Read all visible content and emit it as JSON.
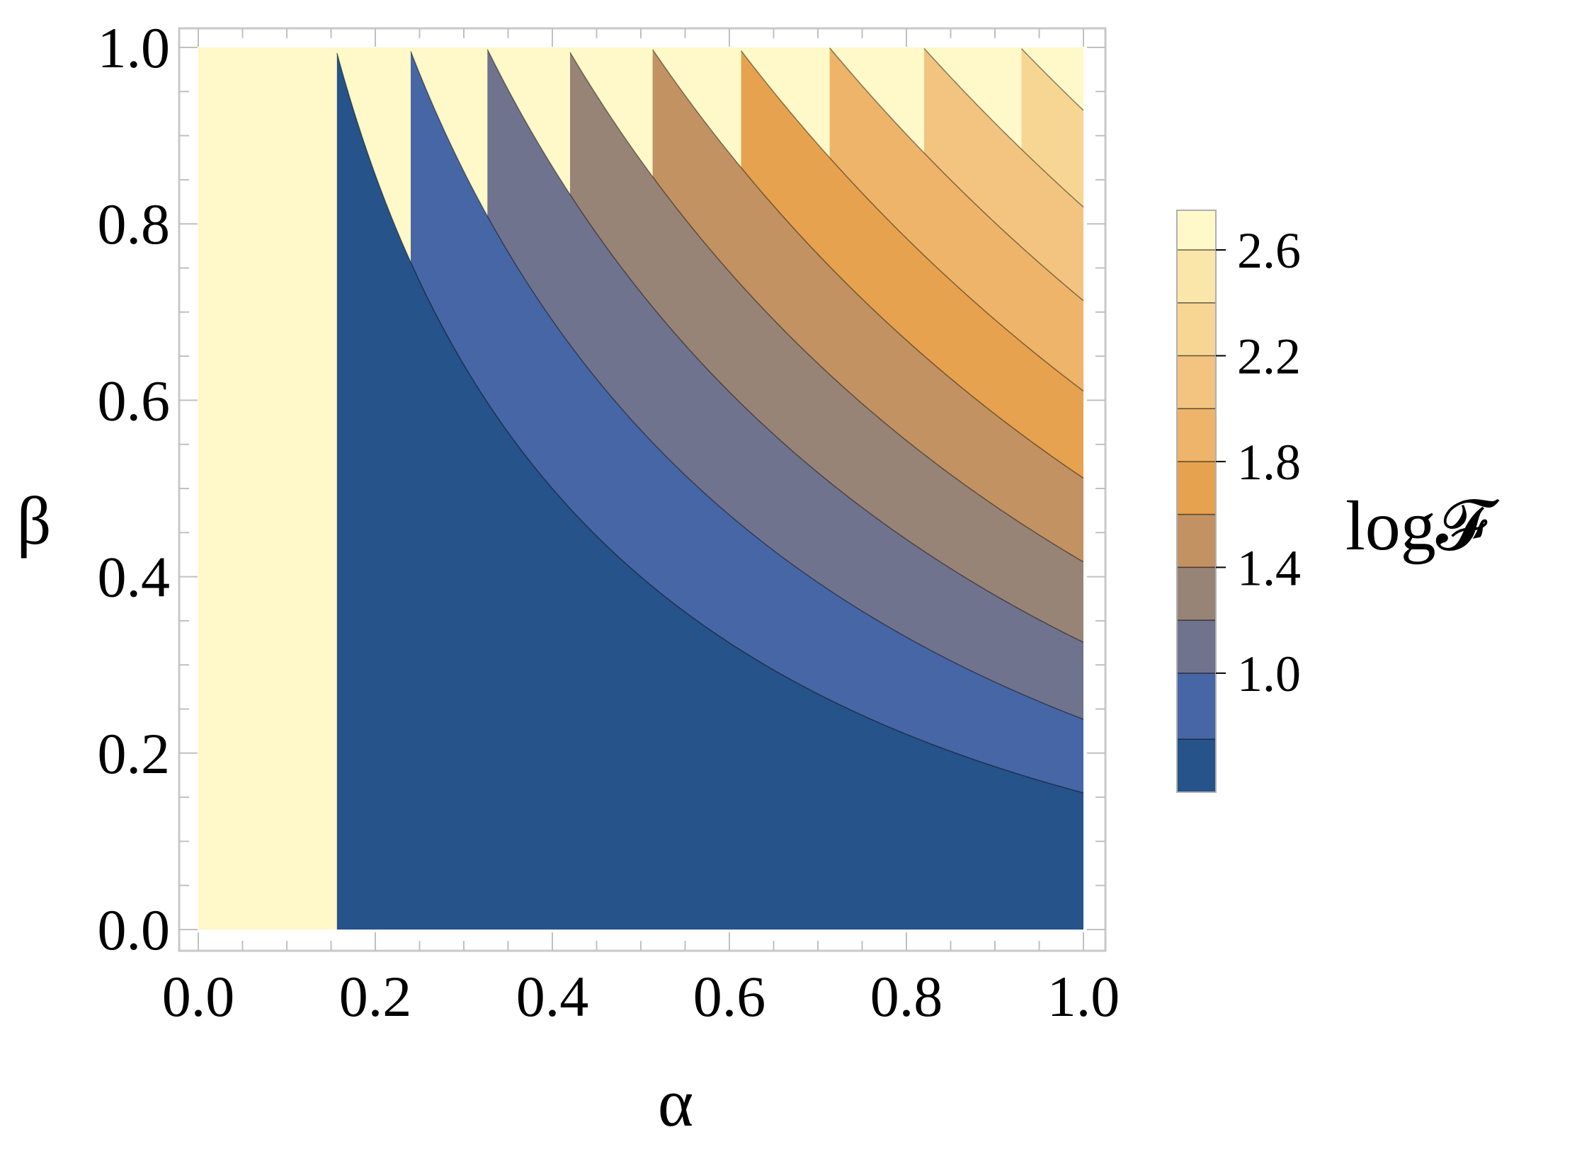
{
  "chart_data": {
    "type": "contour",
    "function": "log(1 + α·β·e^(α+β))",
    "xlabel": "α",
    "ylabel": "β",
    "xlim": [
      0,
      1
    ],
    "ylim": [
      0,
      1
    ],
    "x_ticks": [
      "0.0",
      "0.2",
      "0.4",
      "0.6",
      "0.8",
      "1.0"
    ],
    "y_ticks": [
      "0.0",
      "0.2",
      "0.4",
      "0.6",
      "0.8",
      "1.0"
    ],
    "x_tick_values": [
      0,
      0.2,
      0.4,
      0.6,
      0.8,
      1.0
    ],
    "y_tick_values": [
      0,
      0.2,
      0.4,
      0.6,
      0.8,
      1.0
    ],
    "contour_levels": [
      0.2,
      0.4,
      0.6,
      0.8,
      1.0,
      1.2,
      1.4,
      1.6,
      1.8,
      2.0,
      2.2,
      2.4,
      2.6
    ],
    "band_colors": [
      "#25538A",
      "#4766A6",
      "#70738E",
      "#988476",
      "#C29262",
      "#E6A24E",
      "#EDB46A",
      "#F2C47F",
      "#F7D694",
      "#FFF8C8"
    ],
    "colorbar": {
      "title": "log𝓕",
      "tick_labels": [
        "1.0",
        "1.4",
        "1.8",
        "2.2",
        "2.6"
      ],
      "tick_values": [
        1.0,
        1.4,
        1.8,
        2.2,
        2.6
      ],
      "range": [
        0.55,
        2.75
      ],
      "levels": [
        0.75,
        1.0,
        1.2,
        1.4,
        1.6,
        1.8,
        2.0,
        2.2,
        2.4,
        2.6
      ],
      "colors": [
        "#25538A",
        "#4766A6",
        "#70738E",
        "#988476",
        "#C29262",
        "#E6A24E",
        "#EDB46A",
        "#F2C47F",
        "#F7D694",
        "#FAE6A8",
        "#FFF8C8"
      ]
    },
    "grid": false,
    "legend": "colorbar-right"
  }
}
